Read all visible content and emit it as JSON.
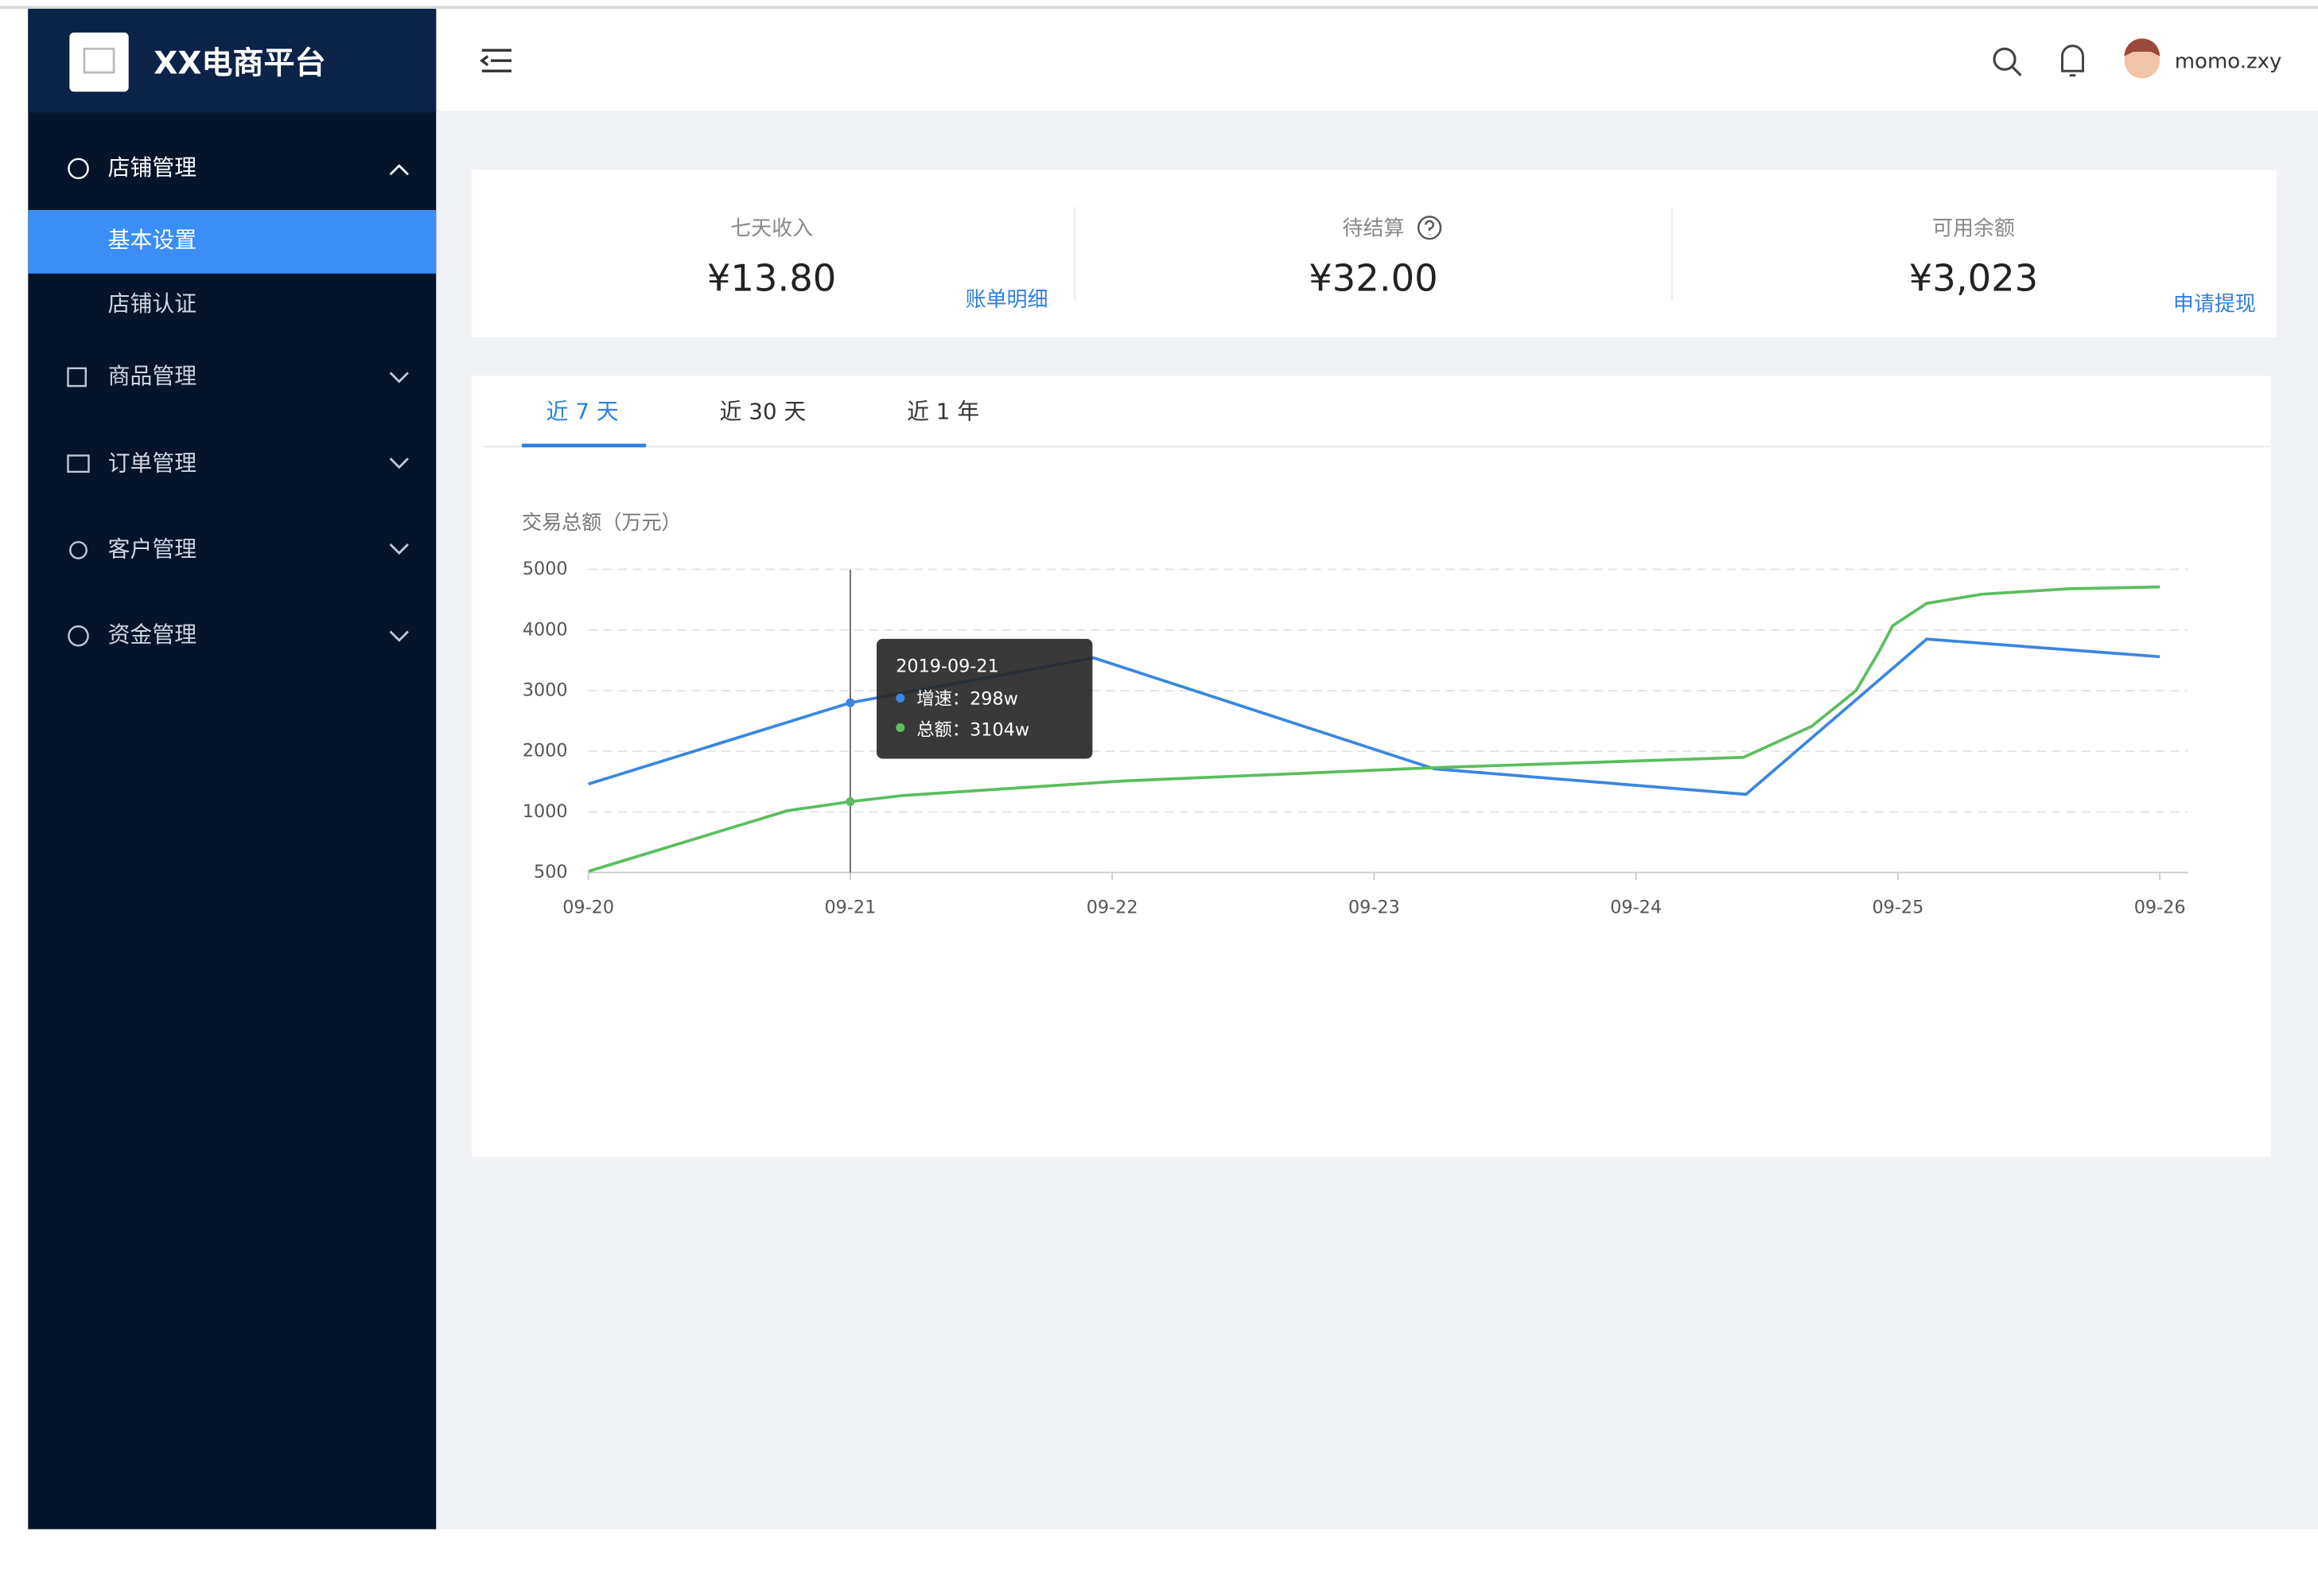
{
  "header": {
    "logo_text": "XX电商平台",
    "username": "momo.zxy"
  },
  "sidebar": {
    "menu": [
      {
        "label": "店铺管理",
        "children": [
          "基本设置",
          "店铺认证"
        ]
      },
      {
        "label": "商品管理"
      },
      {
        "label": "订单管理"
      },
      {
        "label": "客户管理"
      },
      {
        "label": "资金管理"
      }
    ]
  },
  "stats": [
    {
      "label": "七天收入",
      "value": "¥13.80",
      "link": "账单明细"
    },
    {
      "label": "待结算",
      "value": "¥32.00"
    },
    {
      "label": "可用余额",
      "value": "¥3,023",
      "link": "申请提现"
    }
  ],
  "tabs": [
    "近 7 天",
    "近 30 天",
    "近 1 年"
  ],
  "chart_data": {
    "type": "line",
    "title": "交易总额（万元）",
    "xlim": [
      0,
      6
    ],
    "xticks": [
      {
        "value": 0,
        "label": "09-20"
      },
      {
        "value": 1,
        "label": "09-21"
      },
      {
        "value": 2,
        "label": "09-22"
      },
      {
        "value": 3,
        "label": "09-23"
      },
      {
        "value": 4,
        "label": "09-24"
      },
      {
        "value": 5,
        "label": "09-25"
      },
      {
        "value": 6,
        "label": "09-26"
      }
    ],
    "ylim": [
      500,
      5000
    ],
    "yticks": [
      500,
      1000,
      2000,
      3000,
      4000,
      5000
    ],
    "grid": true,
    "series": [
      {
        "color": "#3b86e0",
        "x": [
          0,
          1,
          1.93,
          3.23,
          4.42,
          5.11,
          6
        ],
        "values": [
          1460,
          2800,
          3540,
          1710,
          1290,
          3850,
          3560
        ]
      },
      {
        "color": "#5bbd5f",
        "x": [
          0,
          0.76,
          1,
          1.2,
          2.04,
          3.23,
          4.41,
          4.67,
          4.84,
          4.93,
          4.98,
          5.11,
          5.32,
          5.65,
          6
        ],
        "values": [
          510,
          1020,
          1170,
          1270,
          1510,
          1730,
          1900,
          2410,
          3000,
          3660,
          4070,
          4440,
          4590,
          4680,
          4710
        ]
      }
    ],
    "tooltip": {
      "title": "2019-09-21",
      "items": [
        "增速：298w",
        "总额：3104w"
      ]
    }
  }
}
